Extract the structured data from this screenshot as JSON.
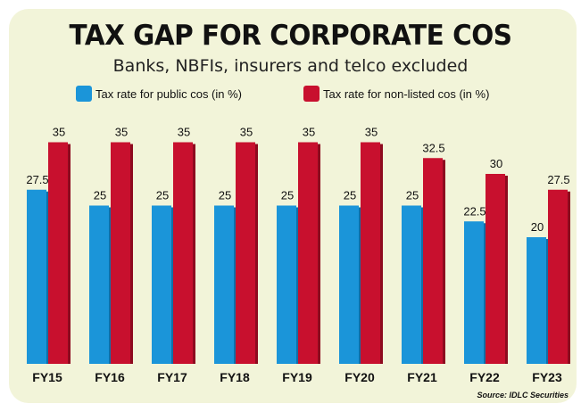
{
  "chart_data": {
    "type": "bar",
    "title": "TAX GAP FOR CORPORATE COS",
    "subtitle": "Banks, NBFIs, insurers and telco excluded",
    "categories": [
      "FY15",
      "FY16",
      "FY17",
      "FY18",
      "FY19",
      "FY20",
      "FY21",
      "FY22",
      "FY23"
    ],
    "series": [
      {
        "name": "Tax rate for public cos (in %)",
        "color": "#1b95d9",
        "values": [
          27.5,
          25,
          25,
          25,
          25,
          25,
          25,
          22.5,
          20
        ],
        "labels": [
          "27.5",
          "25",
          "25",
          "25",
          "25",
          "25",
          "25",
          "22.5",
          "20"
        ]
      },
      {
        "name": "Tax rate for non-listed cos (in %)",
        "color": "#c8102e",
        "values": [
          35,
          35,
          35,
          35,
          35,
          35,
          32.5,
          30,
          27.5
        ],
        "labels": [
          "35",
          "35",
          "35",
          "35",
          "35",
          "35",
          "32.5",
          "30",
          "27.5"
        ]
      }
    ],
    "xlabel": "",
    "ylabel": "",
    "ylim": [
      0,
      35
    ],
    "grid": false,
    "legend_position": "top",
    "source": "Source: IDLC Securities"
  }
}
